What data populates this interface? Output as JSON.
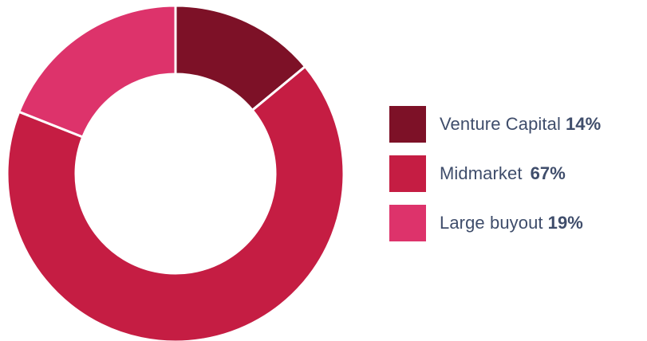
{
  "chart_data": {
    "type": "pie",
    "donut": true,
    "title": "",
    "categories": [
      "Venture Capital",
      "Midmarket",
      "Large buyout"
    ],
    "values": [
      14,
      67,
      19
    ],
    "value_labels": [
      "14%",
      "67%",
      "19%"
    ],
    "colors": [
      "#7d1127",
      "#c51d43",
      "#dd336b"
    ],
    "legend": "right"
  }
}
